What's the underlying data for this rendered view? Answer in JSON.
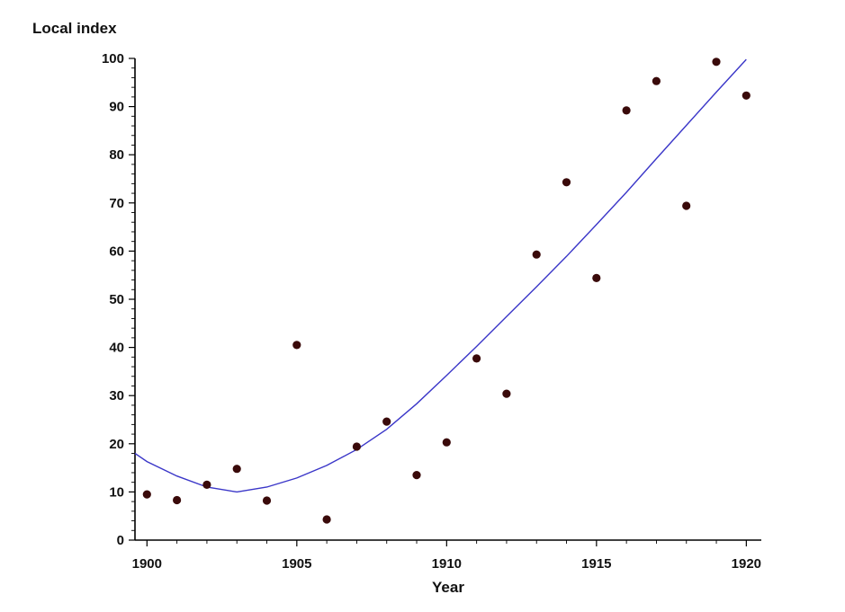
{
  "chart_data": {
    "type": "scatter",
    "title": "",
    "xlabel": "Year",
    "ylabel": "Local index",
    "xlim": [
      1899.6,
      1920.5
    ],
    "ylim": [
      0,
      100
    ],
    "x_ticks": [
      1900,
      1905,
      1910,
      1915,
      1920
    ],
    "y_ticks": [
      0,
      10,
      20,
      30,
      40,
      50,
      60,
      70,
      80,
      90,
      100
    ],
    "grid": false,
    "legend": "none",
    "colors": {
      "points": "#3a0a0a",
      "fit_line": "#3a36c8"
    },
    "series": [
      {
        "type": "scatter",
        "x": [
          1900,
          1901,
          1902,
          1903,
          1904,
          1905,
          1906,
          1907,
          1908,
          1909,
          1910,
          1911,
          1912,
          1913,
          1914,
          1915,
          1916,
          1917,
          1918,
          1919,
          1920
        ],
        "y": [
          9.5,
          8.3,
          11.5,
          14.8,
          8.2,
          40.5,
          4.3,
          19.4,
          24.6,
          13.5,
          20.3,
          37.7,
          30.4,
          59.3,
          74.3,
          54.4,
          89.2,
          95.3,
          69.4,
          99.3,
          92.3
        ]
      },
      {
        "type": "line",
        "x": [
          1899.6,
          1900,
          1901,
          1902,
          1903,
          1904,
          1905,
          1906,
          1907,
          1908,
          1909,
          1910,
          1911,
          1912,
          1913,
          1914,
          1915,
          1916,
          1917,
          1918,
          1919,
          1920
        ],
        "y": [
          18.0,
          16.3,
          13.3,
          11.0,
          10.0,
          11.0,
          12.9,
          15.5,
          18.8,
          23.0,
          28.3,
          34.2,
          40.2,
          46.4,
          52.6,
          58.9,
          65.5,
          72.2,
          79.2,
          86.1,
          93.0,
          99.8
        ]
      }
    ]
  }
}
